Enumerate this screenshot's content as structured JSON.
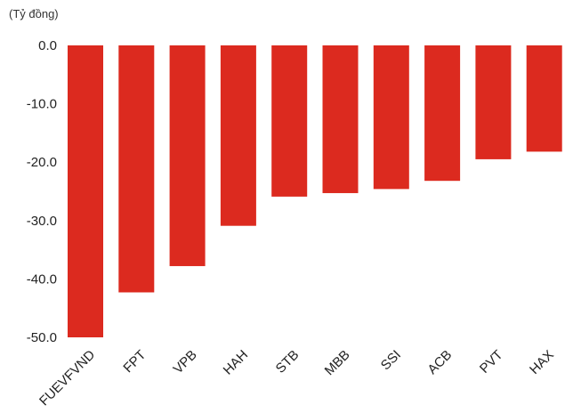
{
  "chart_data": {
    "type": "bar",
    "unit_label": "(Tỷ đồng)",
    "categories": [
      "FUEVFVND",
      "FPT",
      "VPB",
      "HAH",
      "STB",
      "MBB",
      "SSI",
      "ACB",
      "PVT",
      "HAX"
    ],
    "values": [
      -50.0,
      -42.3,
      -37.8,
      -30.9,
      -25.9,
      -25.3,
      -24.6,
      -23.2,
      -19.5,
      -18.2
    ],
    "yticks": [
      "0.0",
      "-10.0",
      "-20.0",
      "-30.0",
      "-40.0",
      "-50.0"
    ],
    "ylim": [
      -50,
      0
    ],
    "grid": false,
    "legend": "none",
    "bar_color": "#dc2a1f"
  }
}
